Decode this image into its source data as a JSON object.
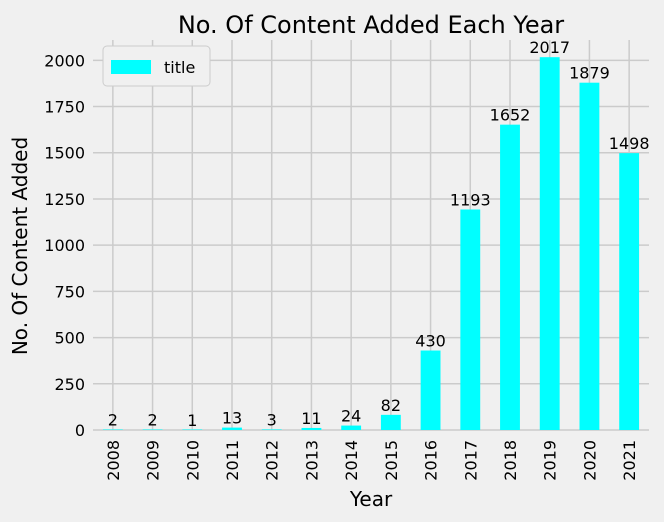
{
  "chart_data": {
    "type": "bar",
    "title": "No. Of Content Added Each Year",
    "xlabel": "Year",
    "ylabel": "No. Of Content Added",
    "categories": [
      "2008",
      "2009",
      "2010",
      "2011",
      "2012",
      "2013",
      "2014",
      "2015",
      "2016",
      "2017",
      "2018",
      "2019",
      "2020",
      "2021"
    ],
    "series": [
      {
        "name": "title",
        "color": "#00ffff",
        "values": [
          2,
          2,
          1,
          13,
          3,
          11,
          24,
          82,
          430,
          1193,
          1652,
          2017,
          1879,
          1498
        ],
        "data_labels": [
          "2",
          "2",
          "1",
          "13",
          "3",
          "11",
          "24",
          "82",
          "430",
          "1193",
          "1652",
          "2017",
          "1879",
          "1498"
        ]
      }
    ],
    "ylim": [
      0,
      2110
    ],
    "yticks": [
      0,
      250,
      500,
      750,
      1000,
      1250,
      1500,
      1750,
      2000
    ],
    "ytick_labels": [
      "0",
      "250",
      "500",
      "750",
      "1000",
      "1250",
      "1500",
      "1750",
      "2000"
    ],
    "grid": true,
    "legend_position": "top-left",
    "background_color": "#f0f0f0",
    "grid_color": "#cbcbcb"
  }
}
